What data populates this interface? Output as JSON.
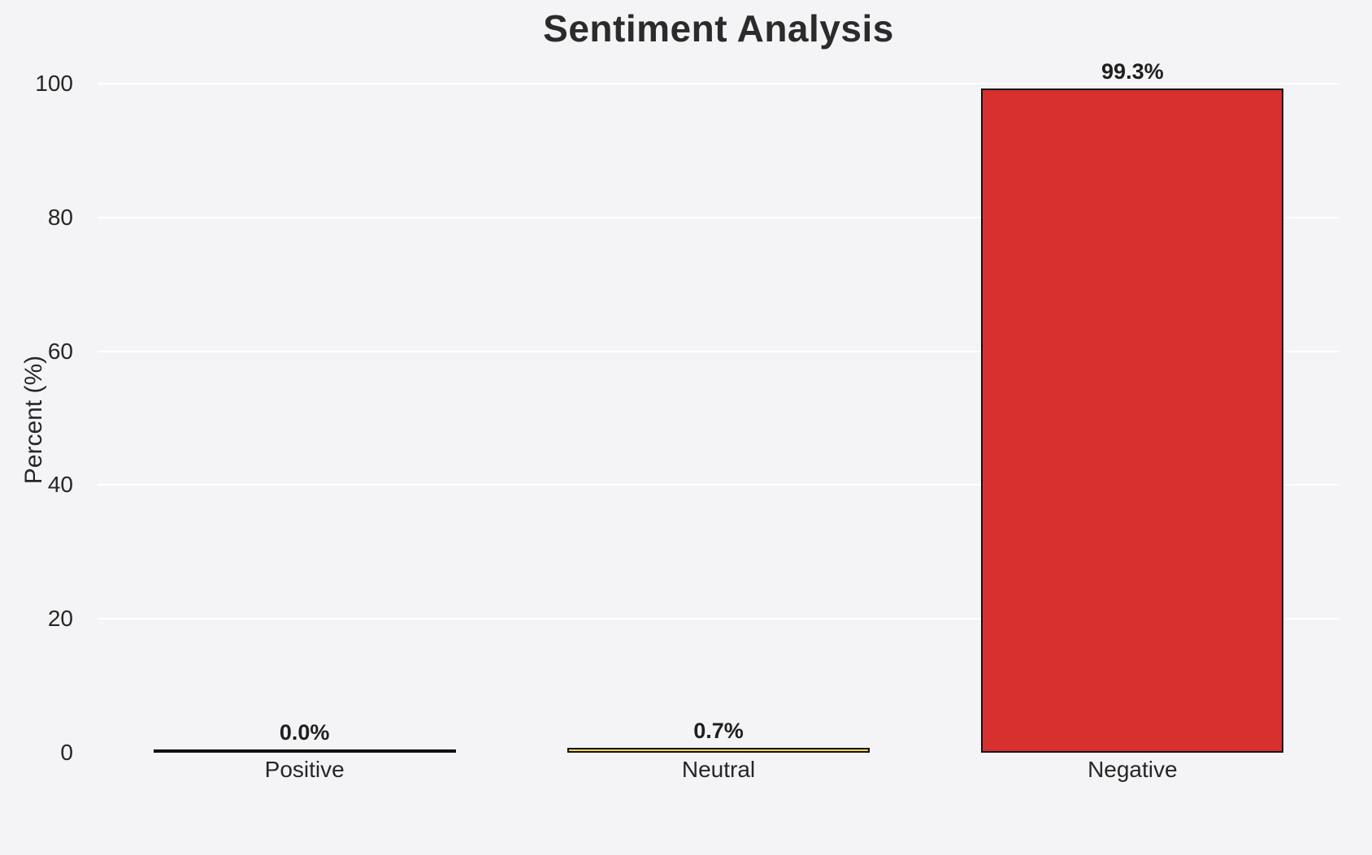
{
  "chart_data": {
    "type": "bar",
    "title": "Sentiment Analysis",
    "xlabel": "",
    "ylabel": "Percent (%)",
    "categories": [
      "Positive",
      "Neutral",
      "Negative"
    ],
    "values": [
      0.0,
      0.7,
      99.3
    ],
    "value_labels": [
      "0.0%",
      "0.7%",
      "99.3%"
    ],
    "bar_colors": [
      "#f4f4f6",
      "#f3d73b",
      "#d8302f"
    ],
    "bar_edge_color": "#111111",
    "ylim": [
      0,
      100
    ],
    "yticks": [
      0,
      20,
      40,
      60,
      80,
      100
    ],
    "grid": "horizontal-white-lines",
    "legend": "none",
    "background": "#f4f4f6"
  }
}
